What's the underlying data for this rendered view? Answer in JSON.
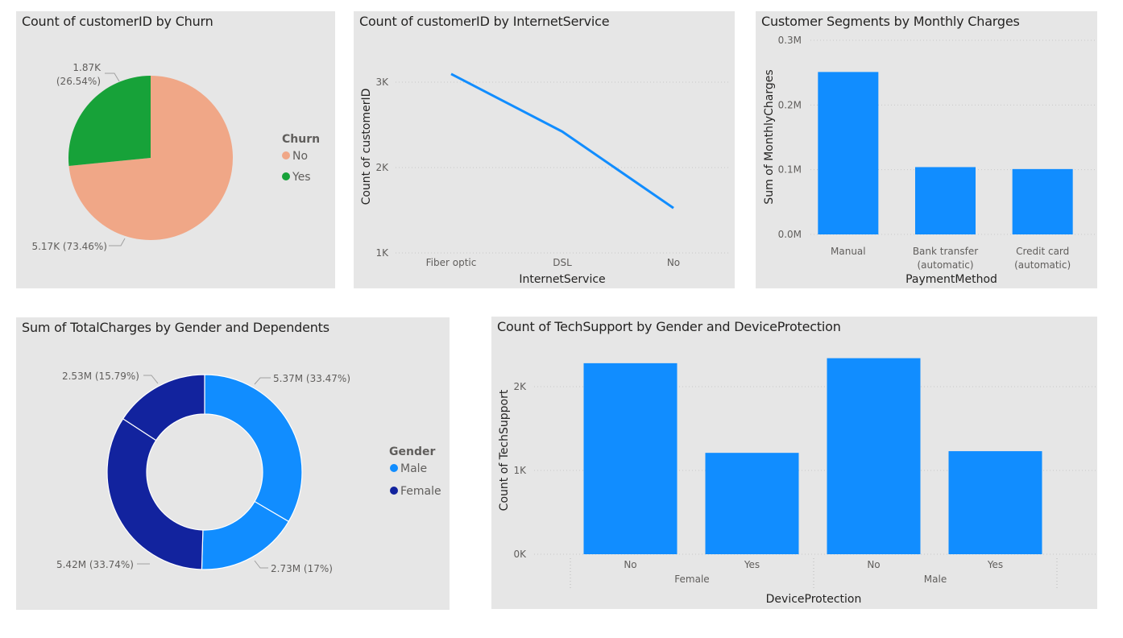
{
  "chart_data": [
    {
      "id": "churn",
      "type": "pie",
      "title": "Count of customerID by Churn",
      "legend_title": "Churn",
      "legend_position": "right",
      "slices": [
        {
          "name": "No",
          "value": 5.17,
          "label": "5.17K (73.46%)",
          "color": "#f0a787"
        },
        {
          "name": "Yes",
          "value": 1.87,
          "label_line1": "1.87K",
          "label_line2": "(26.54%)",
          "color": "#17a239"
        }
      ]
    },
    {
      "id": "internet",
      "type": "line",
      "title": "Count of customerID by InternetService",
      "xlabel": "InternetService",
      "ylabel": "Count of customerID",
      "categories": [
        "Fiber optic",
        "DSL",
        "No"
      ],
      "values": [
        3096,
        2421,
        1526
      ],
      "yticks": [
        {
          "v": 1000,
          "t": "1K"
        },
        {
          "v": 2000,
          "t": "2K"
        },
        {
          "v": 3000,
          "t": "3K"
        }
      ],
      "ylim": [
        1000,
        3000
      ],
      "color": "#118dff"
    },
    {
      "id": "segments",
      "type": "bar",
      "title": "Customer Segments by Monthly Charges",
      "xlabel": "PaymentMethod",
      "ylabel": "Sum of MonthlyCharges",
      "categories": [
        [
          "Manual"
        ],
        [
          "Bank transfer",
          "(automatic)"
        ],
        [
          "Credit card",
          "(automatic)"
        ]
      ],
      "values": [
        0.251,
        0.104,
        0.101
      ],
      "yticks": [
        {
          "v": 0,
          "t": "0.0M"
        },
        {
          "v": 0.1,
          "t": "0.1M"
        },
        {
          "v": 0.2,
          "t": "0.2M"
        },
        {
          "v": 0.3,
          "t": "0.3M"
        }
      ],
      "ylim": [
        0,
        0.3
      ],
      "color": "#118dff"
    },
    {
      "id": "gender",
      "type": "pie",
      "subtype": "donut",
      "title": "Sum of TotalCharges by Gender and Dependents",
      "legend_title": "Gender",
      "legend_position": "right",
      "legend": [
        {
          "name": "Male",
          "color": "#118dff"
        },
        {
          "name": "Female",
          "color": "#12239e"
        }
      ],
      "slices": [
        {
          "value": 33.47,
          "label": "5.37M (33.47%)",
          "color": "#118dff"
        },
        {
          "value": 17.0,
          "label": "2.73M (17%)",
          "color": "#118dff"
        },
        {
          "value": 33.74,
          "label": "5.42M (33.74%)",
          "color": "#12239e"
        },
        {
          "value": 15.79,
          "label": "2.53M (15.79%)",
          "color": "#12239e"
        }
      ]
    },
    {
      "id": "techsupport",
      "type": "bar",
      "title": "Count of TechSupport by Gender and DeviceProtection",
      "xlabel": "DeviceProtection",
      "ylabel": "Count of TechSupport",
      "categories": [
        "No",
        "Yes",
        "No",
        "Yes"
      ],
      "groups": [
        "Female",
        "Male"
      ],
      "values": [
        2280,
        1210,
        2340,
        1230
      ],
      "yticks": [
        {
          "v": 0,
          "t": "0K"
        },
        {
          "v": 1000,
          "t": "1K"
        },
        {
          "v": 2000,
          "t": "2K"
        }
      ],
      "ylim": [
        0,
        2400
      ],
      "color": "#118dff"
    }
  ]
}
